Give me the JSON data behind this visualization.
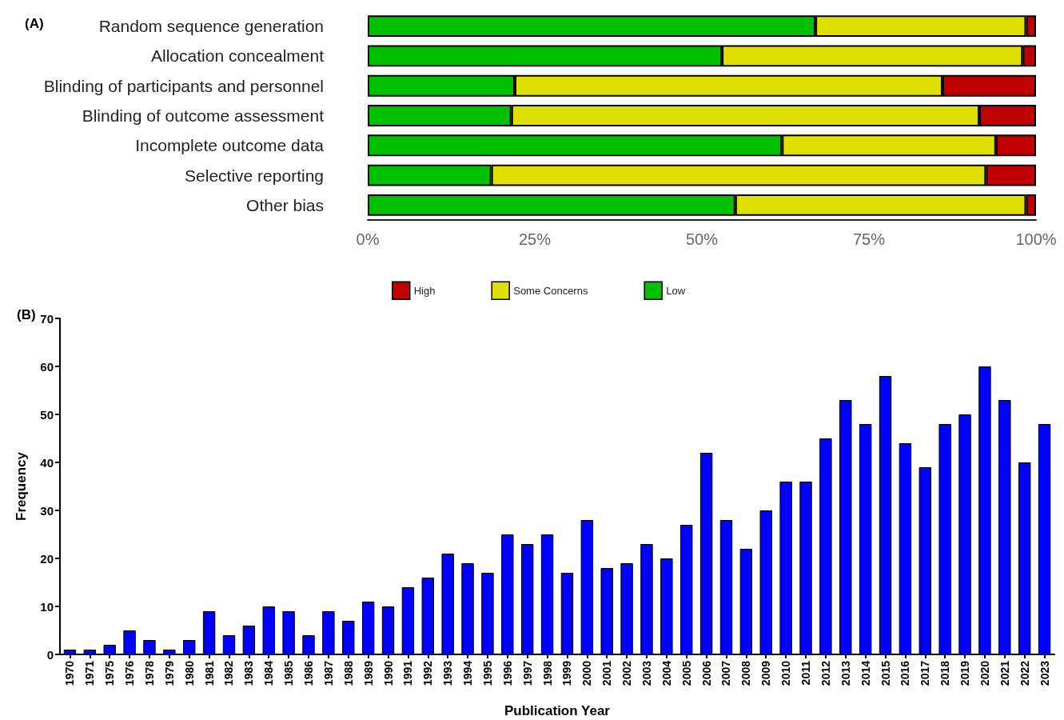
{
  "chart_data": [
    {
      "type": "bar",
      "title": "(A)",
      "orientation": "horizontal",
      "stacked": true,
      "categories": [
        "Random sequence generation",
        "Allocation concealment",
        "Blinding of participants and personnel",
        "Blinding of outcome assessment",
        "Incomplete outcome data",
        "Selective reporting",
        "Other bias"
      ],
      "series": [
        {
          "name": "Low",
          "color": "#00c000",
          "values": [
            67,
            53,
            22,
            21.5,
            62,
            18.5,
            55
          ]
        },
        {
          "name": "Some Concerns",
          "color": "#e0e000",
          "values": [
            31.5,
            45,
            64,
            70,
            32,
            74,
            43.5
          ]
        },
        {
          "name": "High",
          "color": "#c00000",
          "values": [
            1.5,
            2,
            14,
            8.5,
            6,
            7.5,
            1.5
          ]
        }
      ],
      "xlim": [
        0,
        100
      ],
      "xticks": [
        {
          "value": 0,
          "label": "0%"
        },
        {
          "value": 25,
          "label": "25%"
        },
        {
          "value": 50,
          "label": "50%"
        },
        {
          "value": 75,
          "label": "75%"
        },
        {
          "value": 100,
          "label": "100%"
        }
      ],
      "grid": false,
      "legend": "bottom"
    },
    {
      "type": "bar",
      "title": "(B)",
      "xlabel": "Publication Year",
      "ylabel": "Frequency",
      "color": "#0000ff",
      "categories": [
        "1970",
        "1971",
        "1975",
        "1976",
        "1978",
        "1979",
        "1980",
        "1981",
        "1982",
        "1983",
        "1984",
        "1985",
        "1986",
        "1987",
        "1988",
        "1989",
        "1990",
        "1991",
        "1992",
        "1993",
        "1994",
        "1995",
        "1996",
        "1997",
        "1998",
        "1999",
        "2000",
        "2001",
        "2002",
        "2003",
        "2004",
        "2005",
        "2006",
        "2007",
        "2008",
        "2009",
        "2010",
        "2011",
        "2012",
        "2013",
        "2014",
        "2015",
        "2016",
        "2017",
        "2018",
        "2019",
        "2020",
        "2021",
        "2022",
        "2023"
      ],
      "values": [
        1,
        1,
        2,
        5,
        3,
        1,
        3,
        9,
        4,
        6,
        10,
        9,
        4,
        9,
        7,
        11,
        10,
        14,
        16,
        21,
        19,
        17,
        25,
        23,
        25,
        17,
        28,
        18,
        19,
        23,
        20,
        27,
        42,
        28,
        22,
        30,
        36,
        36,
        45,
        53,
        48,
        58,
        44,
        39,
        48,
        50,
        60,
        53,
        40,
        48
      ],
      "ylim": [
        0,
        70
      ],
      "yticks": [
        0,
        10,
        20,
        30,
        40,
        50,
        60,
        70
      ],
      "grid": false,
      "legend": false
    }
  ]
}
